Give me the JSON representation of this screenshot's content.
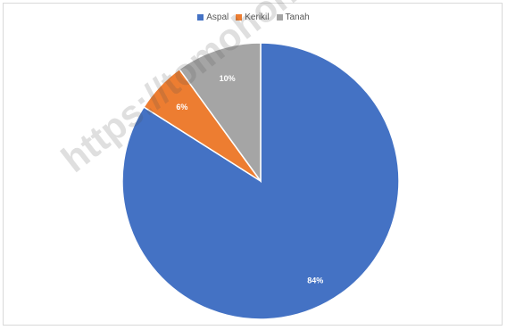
{
  "watermark": "https://tomohonkota.bps.go.id",
  "chart_data": {
    "type": "pie",
    "categories": [
      "Aspal",
      "Kerikil",
      "Tanah"
    ],
    "values": [
      84,
      6,
      10
    ],
    "data_labels": [
      "84%",
      "6%",
      "10%"
    ],
    "colors": [
      "#4472c4",
      "#ed7d31",
      "#a5a5a5"
    ],
    "legend_position": "top",
    "title": ""
  }
}
